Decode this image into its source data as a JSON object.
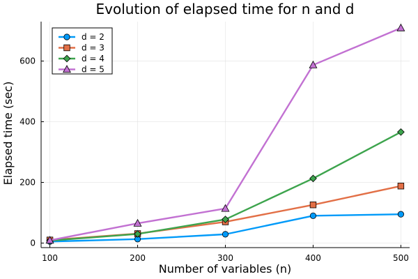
{
  "chart_data": {
    "type": "line",
    "title": "Evolution of elapsed time for n and d",
    "xlabel": "Number of variables (n)",
    "ylabel": "Elapsed time (sec)",
    "x": [
      100,
      200,
      300,
      400,
      500
    ],
    "xlim": [
      90,
      510
    ],
    "ylim": [
      -15,
      730
    ],
    "xticks": [
      100,
      200,
      300,
      400,
      500
    ],
    "yticks": [
      0,
      200,
      400,
      600
    ],
    "grid": true,
    "legend_position": "top-left",
    "series": [
      {
        "name": "d = 2",
        "color": "#009af9",
        "marker": "circle",
        "values": [
          5,
          13,
          29,
          90,
          95
        ]
      },
      {
        "name": "d = 3",
        "color": "#e26f46",
        "marker": "square",
        "values": [
          10,
          31,
          70,
          126,
          188
        ]
      },
      {
        "name": "d = 4",
        "color": "#3da44d",
        "marker": "diamond",
        "values": [
          8,
          30,
          78,
          213,
          366
        ]
      },
      {
        "name": "d = 5",
        "color": "#c271d2",
        "marker": "triangle",
        "values": [
          9,
          65,
          114,
          587,
          709
        ]
      }
    ]
  }
}
